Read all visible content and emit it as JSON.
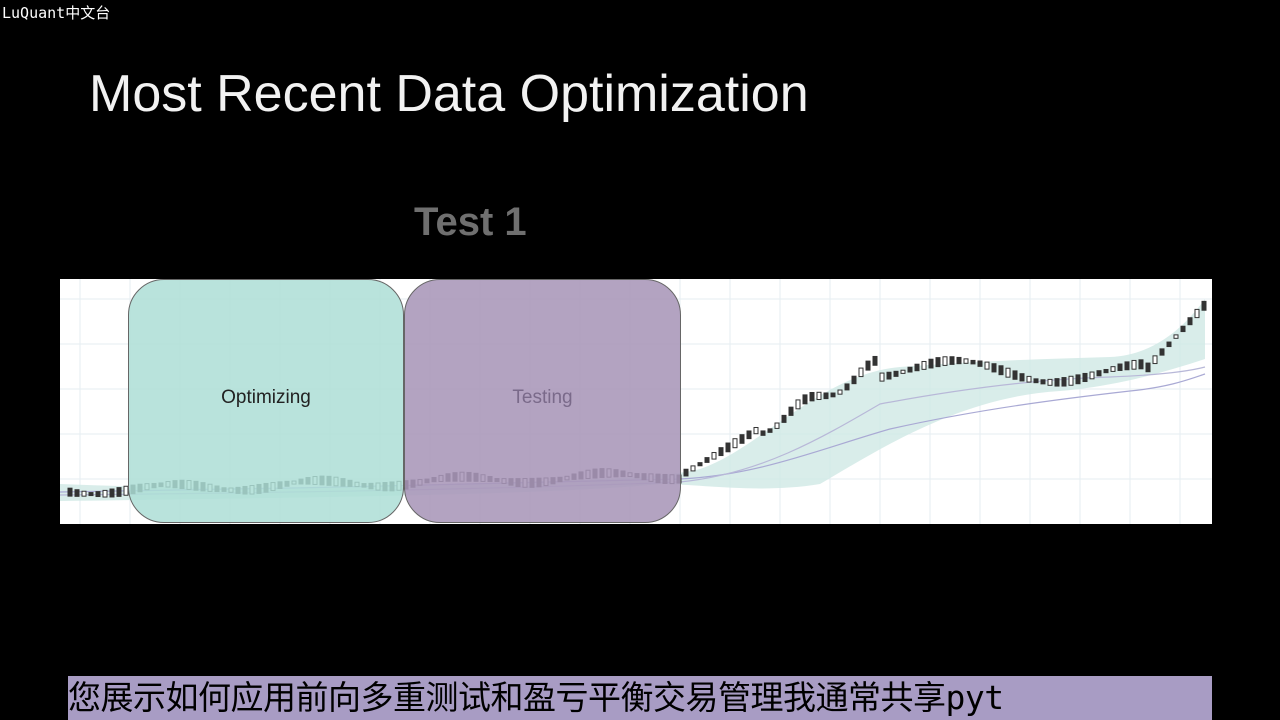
{
  "watermark": "LuQuant中文台",
  "slide": {
    "title": "Most Recent Data Optimization",
    "test_heading": "Test 1"
  },
  "chart": {
    "optimizing_label": "Optimizing",
    "testing_label": "Testing",
    "colors": {
      "optimizing_box": "#addED6",
      "testing_box": "#a896b8",
      "band": "#c9e6e2",
      "candle": "#333333"
    }
  },
  "subtitle": "您展示如何应用前向多重测试和盈亏平衡交易管理我通常共享pyt"
}
